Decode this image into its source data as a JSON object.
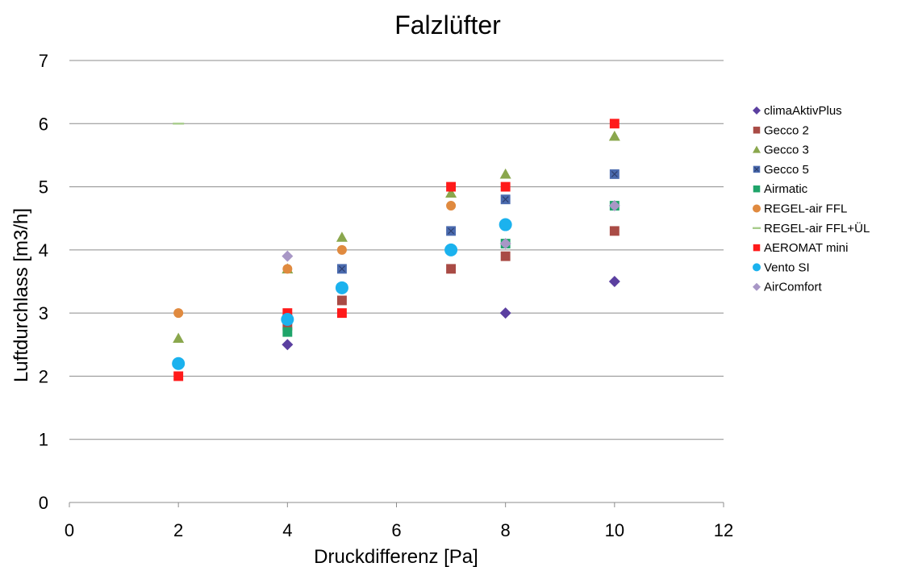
{
  "chart_data": {
    "type": "scatter",
    "title": "Falzlüfter",
    "xlabel": "Druckdifferenz [Pa]",
    "ylabel": "Luftdurchlass [m3/h]",
    "xlim": [
      0,
      12
    ],
    "ylim": [
      0,
      7
    ],
    "x_ticks": [
      "0",
      "2",
      "4",
      "6",
      "8",
      "10",
      "12"
    ],
    "y_ticks": [
      "0",
      "1",
      "2",
      "3",
      "4",
      "5",
      "6",
      "7"
    ],
    "grid": "horizontal",
    "legend_position": "right",
    "series": [
      {
        "name": "climaAktivPlus",
        "marker": "diamond",
        "color": "#5B3FA0",
        "points": [
          [
            4,
            2.5
          ],
          [
            8,
            3.0
          ],
          [
            10,
            3.5
          ]
        ]
      },
      {
        "name": "Gecco 2",
        "marker": "square",
        "color": "#A94B45",
        "points": [
          [
            4,
            2.8
          ],
          [
            5,
            3.2
          ],
          [
            7,
            3.7
          ],
          [
            8,
            3.9
          ],
          [
            10,
            4.3
          ]
        ]
      },
      {
        "name": "Gecco 3",
        "marker": "triangle",
        "color": "#8AA74D",
        "points": [
          [
            2,
            2.6
          ],
          [
            4,
            3.7
          ],
          [
            5,
            4.2
          ],
          [
            7,
            4.9
          ],
          [
            8,
            5.2
          ],
          [
            10,
            5.8
          ]
        ]
      },
      {
        "name": "Gecco 5",
        "marker": "square-x",
        "color": "#4A6AAE",
        "points": [
          [
            4,
            2.9
          ],
          [
            5,
            3.7
          ],
          [
            7,
            4.3
          ],
          [
            8,
            4.8
          ],
          [
            10,
            5.2
          ]
        ]
      },
      {
        "name": "Airmatic",
        "marker": "square",
        "color": "#1FA46A",
        "points": [
          [
            4,
            2.7
          ],
          [
            8,
            4.1
          ],
          [
            10,
            4.7
          ]
        ]
      },
      {
        "name": "REGEL-air FFL",
        "marker": "circle",
        "color": "#E08A3F",
        "points": [
          [
            2,
            3.0
          ],
          [
            4,
            3.7
          ],
          [
            5,
            4.0
          ],
          [
            7,
            4.7
          ]
        ]
      },
      {
        "name": "REGEL-air FFL+ÜL",
        "marker": "dash",
        "color": "#A8CC8C",
        "points": [
          [
            2,
            6.0
          ]
        ]
      },
      {
        "name": "AEROMAT mini",
        "marker": "square",
        "color": "#FF1A1A",
        "points": [
          [
            2,
            2.0
          ],
          [
            4,
            3.0
          ],
          [
            5,
            3.0
          ],
          [
            7,
            5.0
          ],
          [
            8,
            5.0
          ],
          [
            10,
            6.0
          ]
        ]
      },
      {
        "name": "Vento SI",
        "marker": "circle",
        "color": "#1BB2EE",
        "points": [
          [
            2,
            2.2
          ],
          [
            4,
            2.9
          ],
          [
            5,
            3.4
          ],
          [
            7,
            4.0
          ],
          [
            8,
            4.4
          ]
        ]
      },
      {
        "name": "AirComfort",
        "marker": "diamond",
        "color": "#A897C6",
        "points": [
          [
            4,
            3.9
          ],
          [
            8,
            4.1
          ],
          [
            10,
            4.7
          ]
        ]
      }
    ]
  }
}
